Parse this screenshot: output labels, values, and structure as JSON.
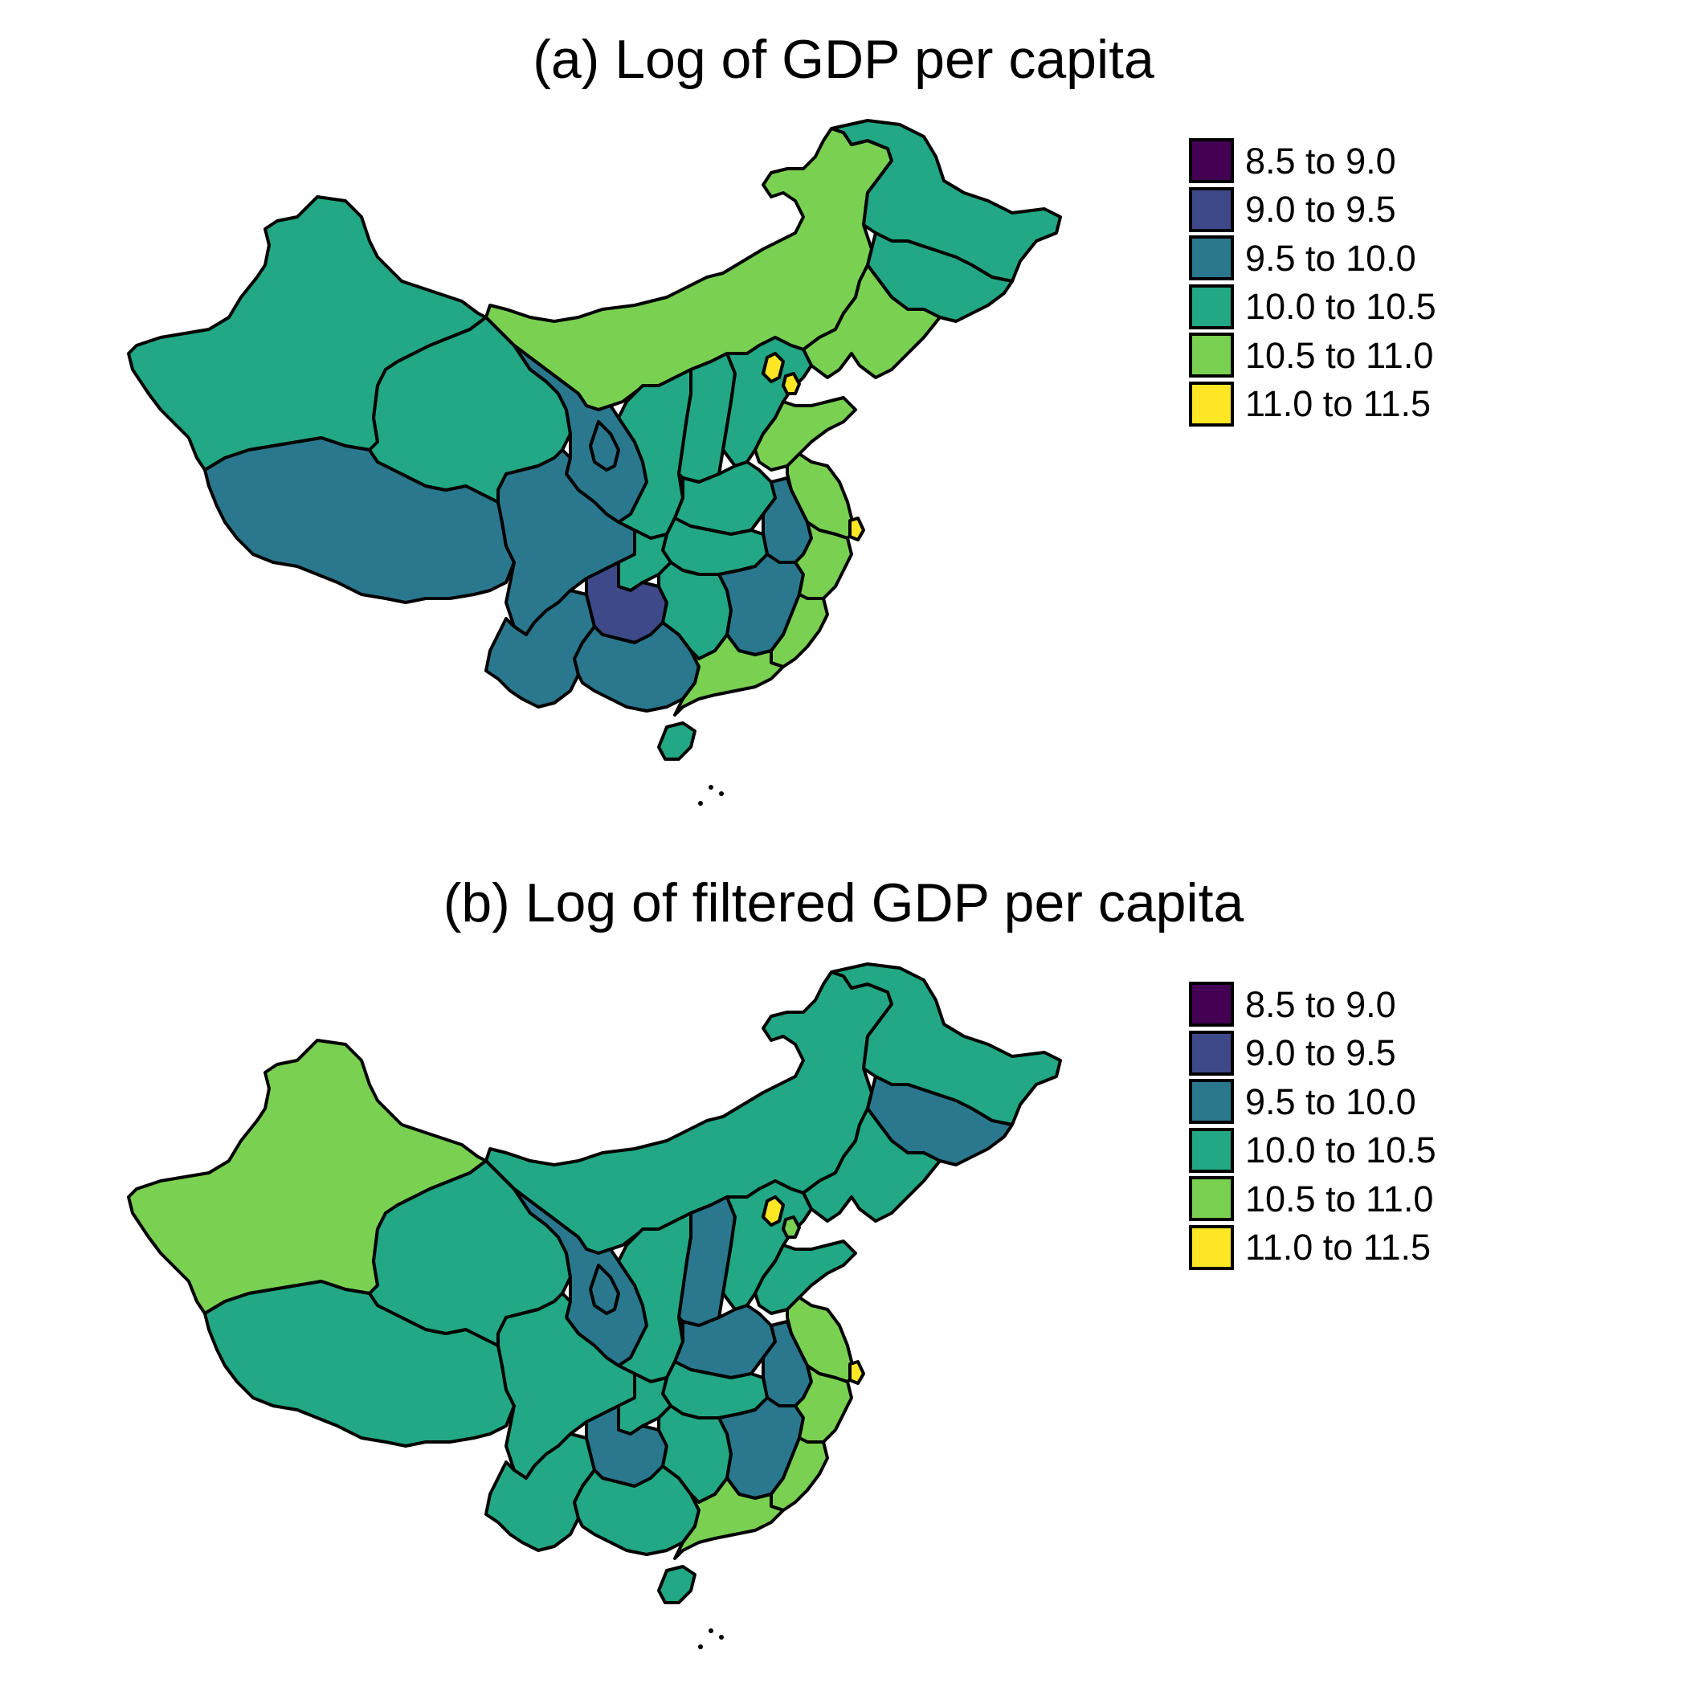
{
  "colors": {
    "c1": "#440154",
    "c2": "#3e4989",
    "c3": "#2a788e",
    "c4": "#22a884",
    "c5": "#7ad151",
    "c6": "#fde725"
  },
  "legend": [
    {
      "label": "8.5 to 9.0",
      "color": "#440154"
    },
    {
      "label": "9.0 to 9.5",
      "color": "#3e4989"
    },
    {
      "label": "9.5 to 10.0",
      "color": "#2a788e"
    },
    {
      "label": "10.0 to 10.5",
      "color": "#22a884"
    },
    {
      "label": "10.5 to 11.0",
      "color": "#7ad151"
    },
    {
      "label": "11.0 to 11.5",
      "color": "#fde725"
    }
  ],
  "panels": [
    {
      "title": "(a) Log of GDP per capita",
      "regions": {
        "heilongjiang": "10.0 to 10.5",
        "jilin": "10.0 to 10.5",
        "liaoning": "10.5 to 11.0",
        "inner_mongolia": "10.5 to 11.0",
        "xinjiang": "10.0 to 10.5",
        "tibet": "9.5 to 10.0",
        "qinghai": "10.0 to 10.5",
        "gansu": "9.5 to 10.0",
        "ningxia": "9.5 to 10.0",
        "shaanxi": "10.0 to 10.5",
        "shanxi": "10.0 to 10.5",
        "hebei": "10.0 to 10.5",
        "beijing": "11.0 to 11.5",
        "tianjin": "11.0 to 11.5",
        "shandong": "10.5 to 11.0",
        "henan": "10.0 to 10.5",
        "jiangsu": "10.5 to 11.0",
        "shanghai": "11.0 to 11.5",
        "anhui": "9.5 to 10.0",
        "hubei": "10.0 to 10.5",
        "sichuan": "9.5 to 10.0",
        "chongqing": "10.0 to 10.5",
        "yunnan": "9.5 to 10.0",
        "guizhou": "9.0 to 9.5",
        "guangxi": "9.5 to 10.0",
        "hunan": "10.0 to 10.5",
        "jiangxi": "9.5 to 10.0",
        "zhejiang": "10.5 to 11.0",
        "fujian": "10.5 to 11.0",
        "guangdong": "10.5 to 11.0",
        "hainan": "10.0 to 10.5"
      }
    },
    {
      "title": "(b) Log of filtered GDP per capita",
      "regions": {
        "heilongjiang": "10.0 to 10.5",
        "jilin": "9.5 to 10.0",
        "liaoning": "10.0 to 10.5",
        "inner_mongolia": "10.0 to 10.5",
        "xinjiang": "10.5 to 11.0",
        "tibet": "10.0 to 10.5",
        "qinghai": "10.0 to 10.5",
        "gansu": "9.5 to 10.0",
        "ningxia": "9.5 to 10.0",
        "shaanxi": "10.0 to 10.5",
        "shanxi": "9.5 to 10.0",
        "hebei": "10.0 to 10.5",
        "beijing": "11.0 to 11.5",
        "tianjin": "10.5 to 11.0",
        "shandong": "10.0 to 10.5",
        "henan": "9.5 to 10.0",
        "jiangsu": "10.5 to 11.0",
        "shanghai": "11.0 to 11.5",
        "anhui": "9.5 to 10.0",
        "hubei": "10.0 to 10.5",
        "sichuan": "10.0 to 10.5",
        "chongqing": "10.0 to 10.5",
        "yunnan": "10.0 to 10.5",
        "guizhou": "9.5 to 10.0",
        "guangxi": "10.0 to 10.5",
        "hunan": "10.0 to 10.5",
        "jiangxi": "9.5 to 10.0",
        "zhejiang": "10.5 to 11.0",
        "fujian": "10.5 to 11.0",
        "guangdong": "10.5 to 11.0",
        "hainan": "10.0 to 10.5"
      }
    }
  ]
}
